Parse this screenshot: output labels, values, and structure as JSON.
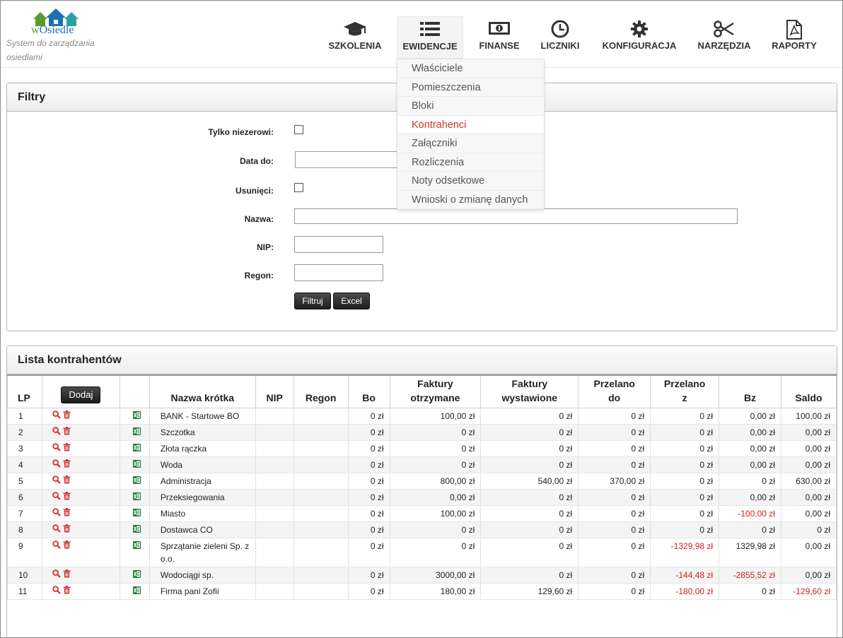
{
  "brand": {
    "logo_text_w": "w",
    "logo_text_rest": "Osiedle",
    "tagline": "System do zarządzania osiedlami"
  },
  "nav": {
    "items": [
      {
        "label": "SZKOLENIA",
        "icon": "graduation-cap-icon"
      },
      {
        "label": "EWIDENCJE",
        "icon": "list-icon"
      },
      {
        "label": "FINANSE",
        "icon": "money-icon"
      },
      {
        "label": "LICZNIKI",
        "icon": "clock-icon"
      },
      {
        "label": "KONFIGURACJA",
        "icon": "gear-icon"
      },
      {
        "label": "NARZĘDZIA",
        "icon": "scissors-icon"
      },
      {
        "label": "RAPORTY",
        "icon": "pdf-file-icon"
      }
    ],
    "active": "EWIDENCJE"
  },
  "dropdown": {
    "items": [
      "Właściciele",
      "Pomieszczenia",
      "Bloki",
      "Kontrahenci",
      "Załączniki",
      "Rozliczenia",
      "Noty odsetkowe",
      "Wnioski o zmianę danych"
    ],
    "active": "Kontrahenci"
  },
  "filters": {
    "title": "Filtry",
    "only_nonzero_label": "Tylko niezerowi:",
    "date_label": "Data do:",
    "deleted_label": "Usunięci:",
    "name_label": "Nazwa:",
    "nip_label": "NIP:",
    "regon_label": "Regon:",
    "filter_button": "Filtruj",
    "excel_button": "Excel"
  },
  "list": {
    "title": "Lista kontrahentów",
    "add_button": "Dodaj",
    "columns": {
      "lp": "LP",
      "name": "Nazwa krótka",
      "nip": "NIP",
      "regon": "Regon",
      "bo": "Bo",
      "received_1": "Faktury",
      "received_2": "otrzymane",
      "issued_1": "Faktury",
      "issued_2": "wystawione",
      "to_1": "Przelano",
      "to_2": "do",
      "from_1": "Przelano",
      "from_2": "z",
      "bz": "Bz",
      "saldo": "Saldo"
    },
    "rows": [
      {
        "lp": "1",
        "name": "BANK - Startowe BO",
        "nip": "",
        "regon": "",
        "bo": "0 zł",
        "received": "100,00 zł",
        "issued": "0 zł",
        "to": "0 zł",
        "from": "0 zł",
        "bz": "0,00 zł",
        "saldo": "100,00 zł"
      },
      {
        "lp": "2",
        "name": "Szczotka",
        "nip": "",
        "regon": "",
        "bo": "0 zł",
        "received": "0 zł",
        "issued": "0 zł",
        "to": "0 zł",
        "from": "0 zł",
        "bz": "0,00 zł",
        "saldo": "0,00 zł"
      },
      {
        "lp": "3",
        "name": "Złota rączka",
        "nip": "",
        "regon": "",
        "bo": "0 zł",
        "received": "0 zł",
        "issued": "0 zł",
        "to": "0 zł",
        "from": "0 zł",
        "bz": "0,00 zł",
        "saldo": "0,00 zł"
      },
      {
        "lp": "4",
        "name": "Woda",
        "nip": "",
        "regon": "",
        "bo": "0 zł",
        "received": "0 zł",
        "issued": "0 zł",
        "to": "0 zł",
        "from": "0 zł",
        "bz": "0,00 zł",
        "saldo": "0,00 zł"
      },
      {
        "lp": "5",
        "name": "Administracja",
        "nip": "",
        "regon": "",
        "bo": "0 zł",
        "received": "800,00 zł",
        "issued": "540,00 zł",
        "to": "370,00 zł",
        "from": "0 zł",
        "bz": "0 zł",
        "saldo": "630,00 zł"
      },
      {
        "lp": "6",
        "name": "Przeksiegowania",
        "nip": "",
        "regon": "",
        "bo": "0 zł",
        "received": "0,00 zł",
        "issued": "0 zł",
        "to": "0 zł",
        "from": "0 zł",
        "bz": "0,00 zł",
        "saldo": "0,00 zł"
      },
      {
        "lp": "7",
        "name": "Miasto",
        "nip": "",
        "regon": "",
        "bo": "0 zł",
        "received": "100,00 zł",
        "issued": "0 zł",
        "to": "0 zł",
        "from": "0 zł",
        "bz": "-100,00 zł",
        "saldo": "0,00 zł"
      },
      {
        "lp": "8",
        "name": "Dostawca CO",
        "nip": "",
        "regon": "",
        "bo": "0 zł",
        "received": "0 zł",
        "issued": "0 zł",
        "to": "0 zł",
        "from": "0 zł",
        "bz": "0 zł",
        "saldo": "0 zł"
      },
      {
        "lp": "9",
        "name": "Sprzątanie zieleni Sp. z o.o.",
        "nip": "",
        "regon": "",
        "bo": "0 zł",
        "received": "0 zł",
        "issued": "0 zł",
        "to": "0 zł",
        "from": "-1329,98 zł",
        "bz": "1329,98 zł",
        "saldo": "0,00 zł"
      },
      {
        "lp": "10",
        "name": "Wodociągi sp.",
        "nip": "",
        "regon": "",
        "bo": "0 zł",
        "received": "3000,00 zł",
        "issued": "0 zł",
        "to": "0 zł",
        "from": "-144,48 zł",
        "bz": "-2855,52 zł",
        "saldo": "0,00 zł"
      },
      {
        "lp": "11",
        "name": "Firma pani Zofii",
        "nip": "",
        "regon": "",
        "bo": "0 zł",
        "received": "180,00 zł",
        "issued": "129,60 zł",
        "to": "0 zł",
        "from": "-180,00 zł",
        "bz": "0 zł",
        "saldo": "-129,60 zł"
      }
    ]
  },
  "colors": {
    "accent_red": "#d0332c",
    "negative": "#d0201a",
    "excel_green": "#1f7a3a",
    "logo_blue": "#1f6fb2",
    "logo_green": "#5a9b2e"
  }
}
